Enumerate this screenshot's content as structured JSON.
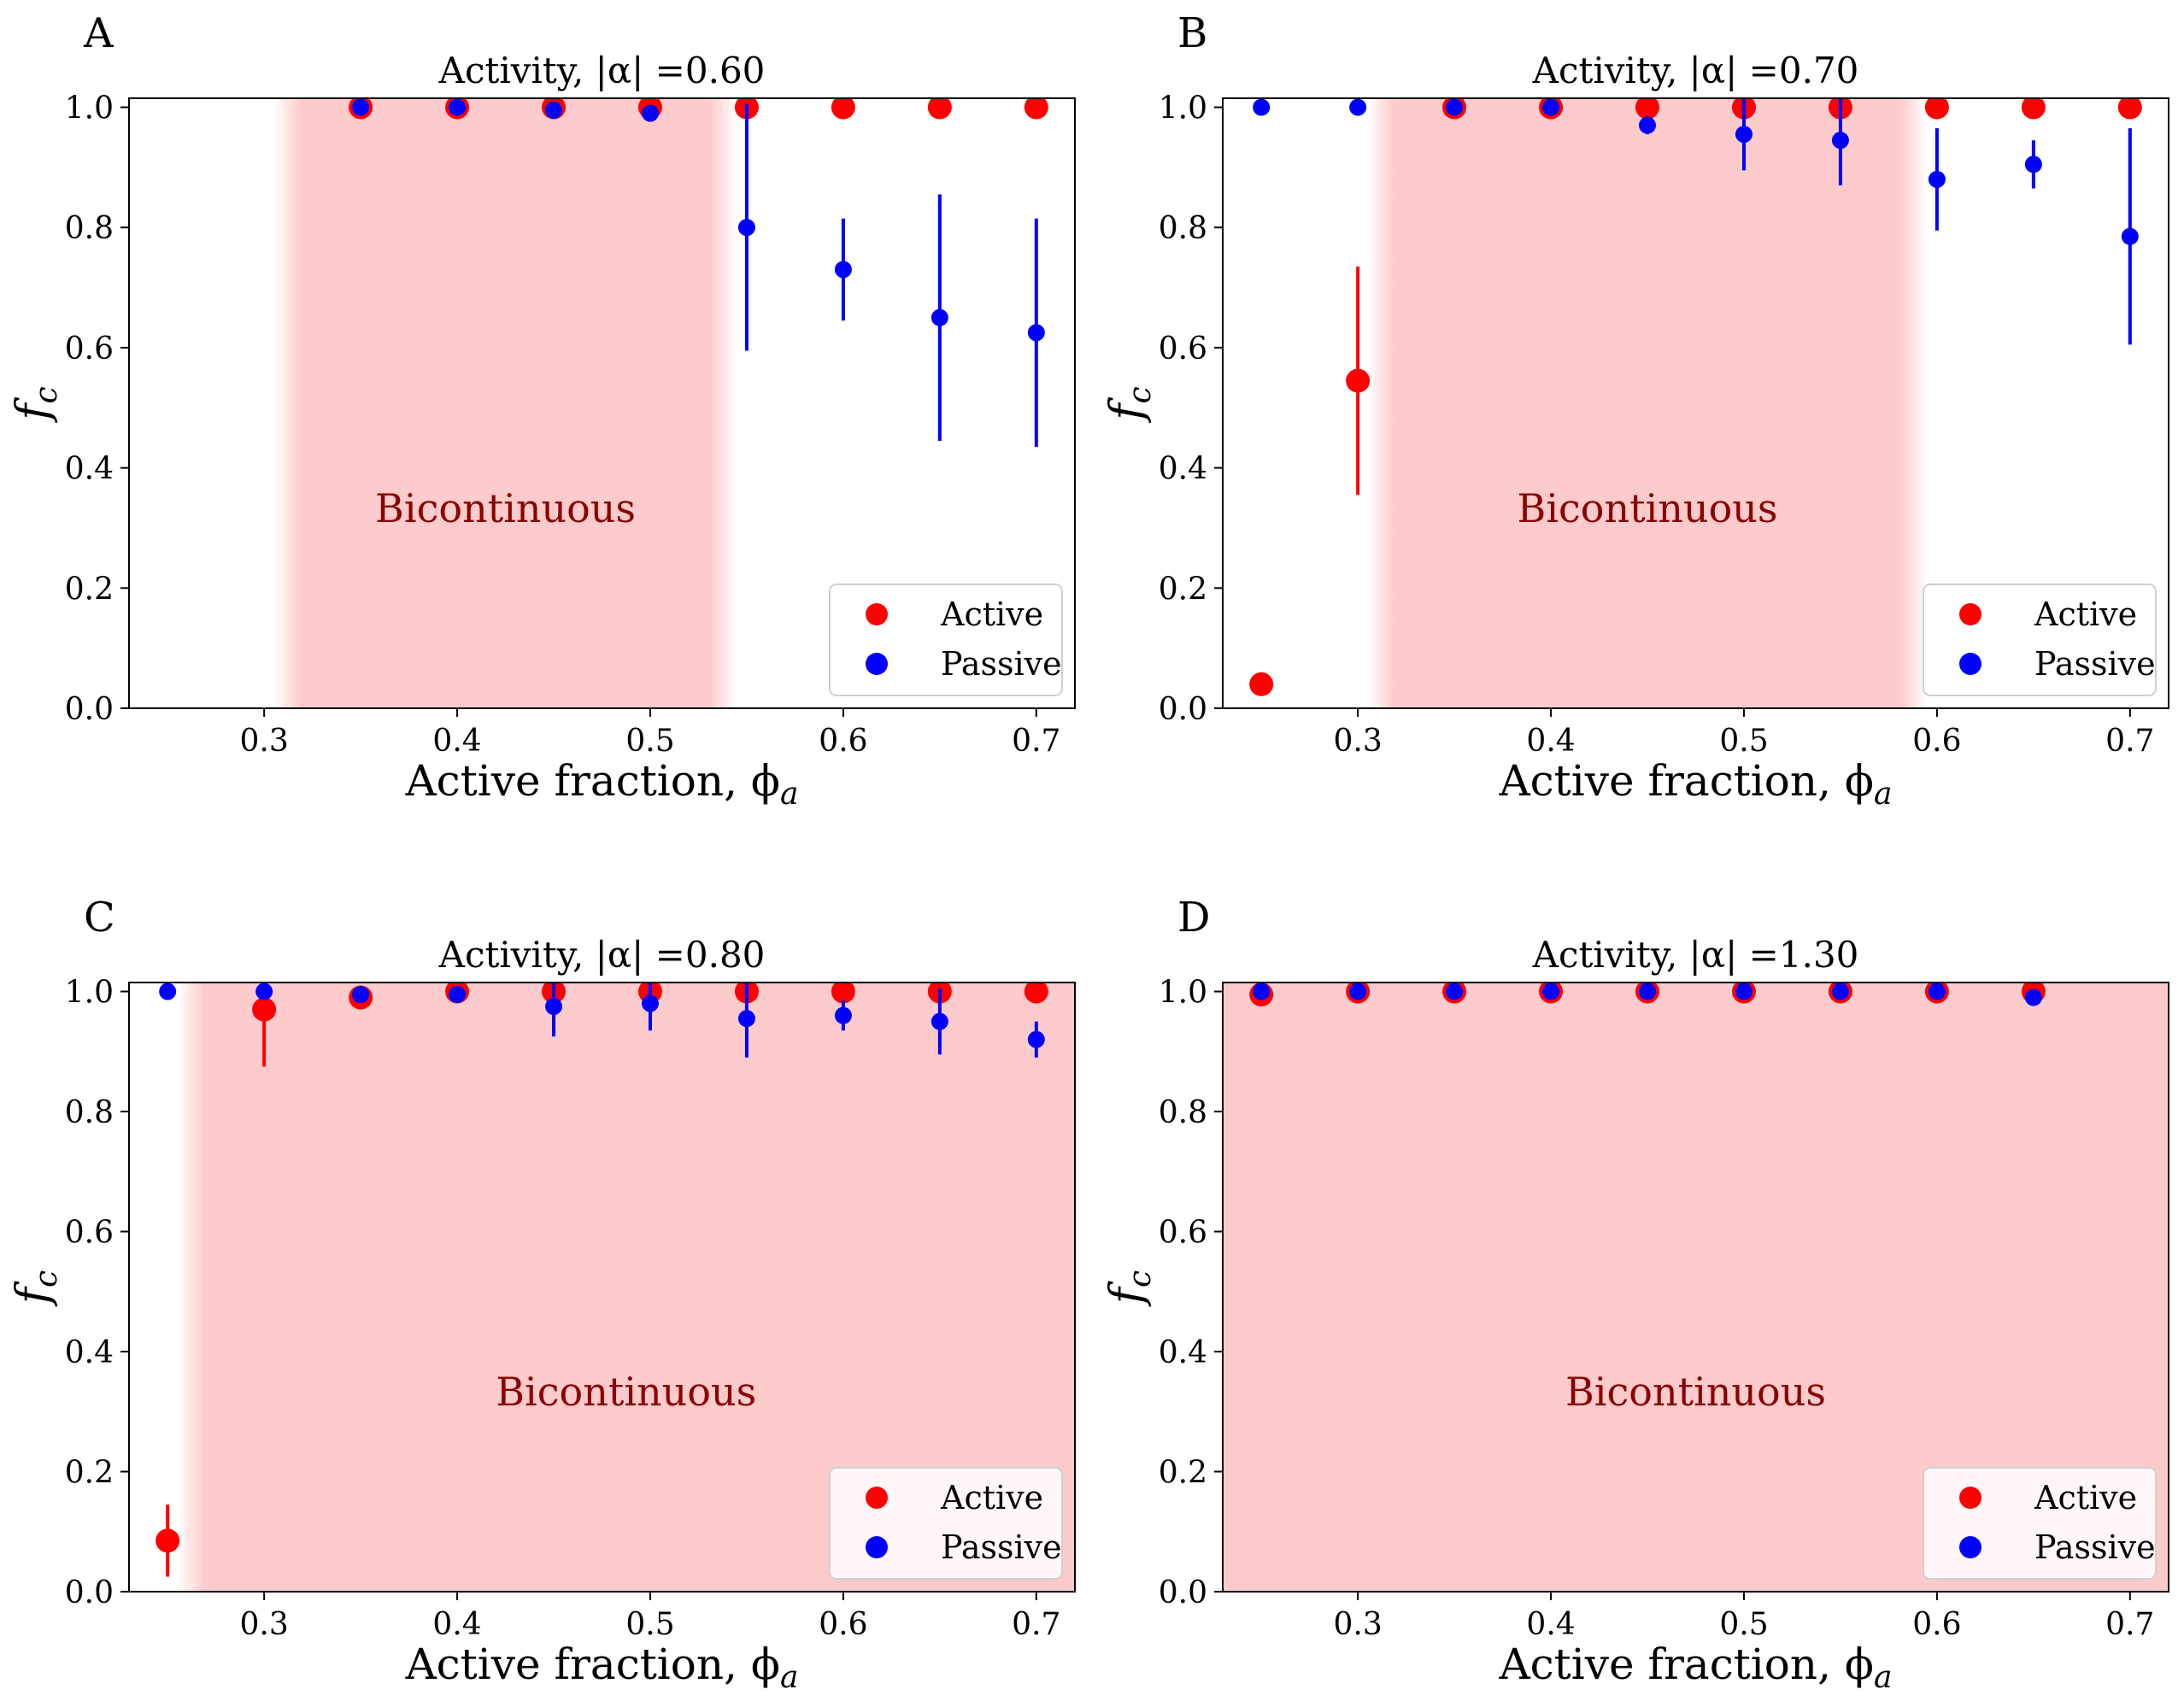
{
  "chart_data": [
    {
      "panel": "A",
      "type": "scatter",
      "title": "Activity, |α| =0.60",
      "xlabel": "Active fraction, ϕa",
      "ylabel": "fc",
      "xlim": [
        0.23,
        0.72
      ],
      "ylim": [
        0.0,
        1.015
      ],
      "xticks": [
        "0.3",
        "0.4",
        "0.5",
        "0.6",
        "0.7"
      ],
      "yticks": [
        "0.0",
        "0.2",
        "0.4",
        "0.6",
        "0.8",
        "1.0"
      ],
      "region": {
        "label": "Bicontinuous",
        "from": 0.305,
        "to": 0.545,
        "fade_left": true,
        "fade_right": true
      },
      "series": [
        {
          "name": "Active",
          "color": "#ff0000",
          "x": [
            0.35,
            0.4,
            0.45,
            0.5,
            0.55,
            0.6,
            0.65,
            0.7
          ],
          "y": [
            1.0,
            1.0,
            1.0,
            1.0,
            1.0,
            1.0,
            1.0,
            1.0
          ],
          "err": [
            0,
            0,
            0,
            0,
            0,
            0,
            0,
            0
          ]
        },
        {
          "name": "Passive",
          "color": "#0000ff",
          "x": [
            0.35,
            0.4,
            0.45,
            0.5,
            0.55,
            0.6,
            0.65,
            0.7
          ],
          "y": [
            1.0,
            1.0,
            0.995,
            0.99,
            0.8,
            0.73,
            0.65,
            0.625
          ],
          "err": [
            0,
            0,
            0,
            0,
            0.205,
            0.085,
            0.205,
            0.19
          ]
        }
      ],
      "legend": {
        "loc": "lower-right",
        "entries": [
          "Active",
          "Passive"
        ]
      }
    },
    {
      "panel": "B",
      "type": "scatter",
      "title": "Activity, |α| =0.70",
      "xlabel": "Active fraction, ϕa",
      "ylabel": "fc",
      "xlim": [
        0.23,
        0.72
      ],
      "ylim": [
        0.0,
        1.015
      ],
      "xticks": [
        "0.3",
        "0.4",
        "0.5",
        "0.6",
        "0.7"
      ],
      "yticks": [
        "0.0",
        "0.2",
        "0.4",
        "0.6",
        "0.8",
        "1.0"
      ],
      "region": {
        "label": "Bicontinuous",
        "from": 0.305,
        "to": 0.595,
        "fade_left": true,
        "fade_right": true
      },
      "series": [
        {
          "name": "Active",
          "color": "#ff0000",
          "x": [
            0.25,
            0.3,
            0.35,
            0.4,
            0.45,
            0.5,
            0.55,
            0.6,
            0.65,
            0.7
          ],
          "y": [
            0.04,
            0.545,
            1.0,
            1.0,
            1.0,
            1.0,
            1.0,
            1.0,
            1.0,
            1.0
          ],
          "err": [
            0,
            0.19,
            0,
            0,
            0,
            0,
            0,
            0,
            0,
            0
          ]
        },
        {
          "name": "Passive",
          "color": "#0000ff",
          "x": [
            0.25,
            0.3,
            0.35,
            0.4,
            0.45,
            0.5,
            0.55,
            0.6,
            0.65,
            0.7
          ],
          "y": [
            1.0,
            1.0,
            1.0,
            1.0,
            0.97,
            0.955,
            0.945,
            0.88,
            0.905,
            0.785
          ],
          "err": [
            0,
            0,
            0,
            0,
            0.015,
            0.06,
            0.075,
            0.085,
            0.04,
            0.18
          ]
        }
      ],
      "legend": {
        "loc": "lower-right",
        "entries": [
          "Active",
          "Passive"
        ]
      }
    },
    {
      "panel": "C",
      "type": "scatter",
      "title": "Activity, |α| =0.80",
      "xlabel": "Active fraction, ϕa",
      "ylabel": "fc",
      "xlim": [
        0.23,
        0.72
      ],
      "ylim": [
        0.0,
        1.015
      ],
      "xticks": [
        "0.3",
        "0.4",
        "0.5",
        "0.6",
        "0.7"
      ],
      "yticks": [
        "0.0",
        "0.2",
        "0.4",
        "0.6",
        "0.8",
        "1.0"
      ],
      "region": {
        "label": "Bicontinuous",
        "from": 0.255,
        "to": 0.72,
        "fade_left": true,
        "fade_right": false
      },
      "series": [
        {
          "name": "Active",
          "color": "#ff0000",
          "x": [
            0.25,
            0.3,
            0.35,
            0.4,
            0.45,
            0.5,
            0.55,
            0.6,
            0.65,
            0.7
          ],
          "y": [
            0.085,
            0.97,
            0.99,
            1.0,
            1.0,
            1.0,
            1.0,
            1.0,
            1.0,
            1.0
          ],
          "err": [
            0.06,
            0.095,
            0,
            0,
            0,
            0,
            0,
            0,
            0,
            0
          ]
        },
        {
          "name": "Passive",
          "color": "#0000ff",
          "x": [
            0.25,
            0.3,
            0.35,
            0.4,
            0.45,
            0.5,
            0.55,
            0.6,
            0.65,
            0.7
          ],
          "y": [
            1.0,
            1.0,
            0.995,
            0.995,
            0.975,
            0.98,
            0.955,
            0.96,
            0.95,
            0.92
          ],
          "err": [
            0,
            0,
            0,
            0,
            0.05,
            0.045,
            0.065,
            0.025,
            0.055,
            0.03
          ]
        }
      ],
      "legend": {
        "loc": "lower-right",
        "entries": [
          "Active",
          "Passive"
        ]
      }
    },
    {
      "panel": "D",
      "type": "scatter",
      "title": "Activity, |α| =1.30",
      "xlabel": "Active fraction, ϕa",
      "ylabel": "fc",
      "xlim": [
        0.23,
        0.72
      ],
      "ylim": [
        0.0,
        1.015
      ],
      "xticks": [
        "0.3",
        "0.4",
        "0.5",
        "0.6",
        "0.7"
      ],
      "yticks": [
        "0.0",
        "0.2",
        "0.4",
        "0.6",
        "0.8",
        "1.0"
      ],
      "region": {
        "label": "Bicontinuous",
        "from": 0.23,
        "to": 0.72,
        "fade_left": false,
        "fade_right": false
      },
      "series": [
        {
          "name": "Active",
          "color": "#ff0000",
          "x": [
            0.25,
            0.3,
            0.35,
            0.4,
            0.45,
            0.5,
            0.55,
            0.6,
            0.65
          ],
          "y": [
            0.995,
            1.0,
            1.0,
            1.0,
            1.0,
            1.0,
            1.0,
            1.0,
            1.0
          ],
          "err": [
            0,
            0,
            0,
            0,
            0,
            0,
            0,
            0,
            0
          ]
        },
        {
          "name": "Passive",
          "color": "#0000ff",
          "x": [
            0.25,
            0.3,
            0.35,
            0.4,
            0.45,
            0.5,
            0.55,
            0.6,
            0.65
          ],
          "y": [
            1.0,
            1.0,
            1.0,
            1.0,
            1.0,
            1.0,
            1.0,
            1.0,
            0.99
          ],
          "err": [
            0,
            0,
            0,
            0,
            0,
            0,
            0,
            0,
            0
          ]
        }
      ],
      "legend": {
        "loc": "lower-right",
        "entries": [
          "Active",
          "Passive"
        ]
      }
    }
  ]
}
